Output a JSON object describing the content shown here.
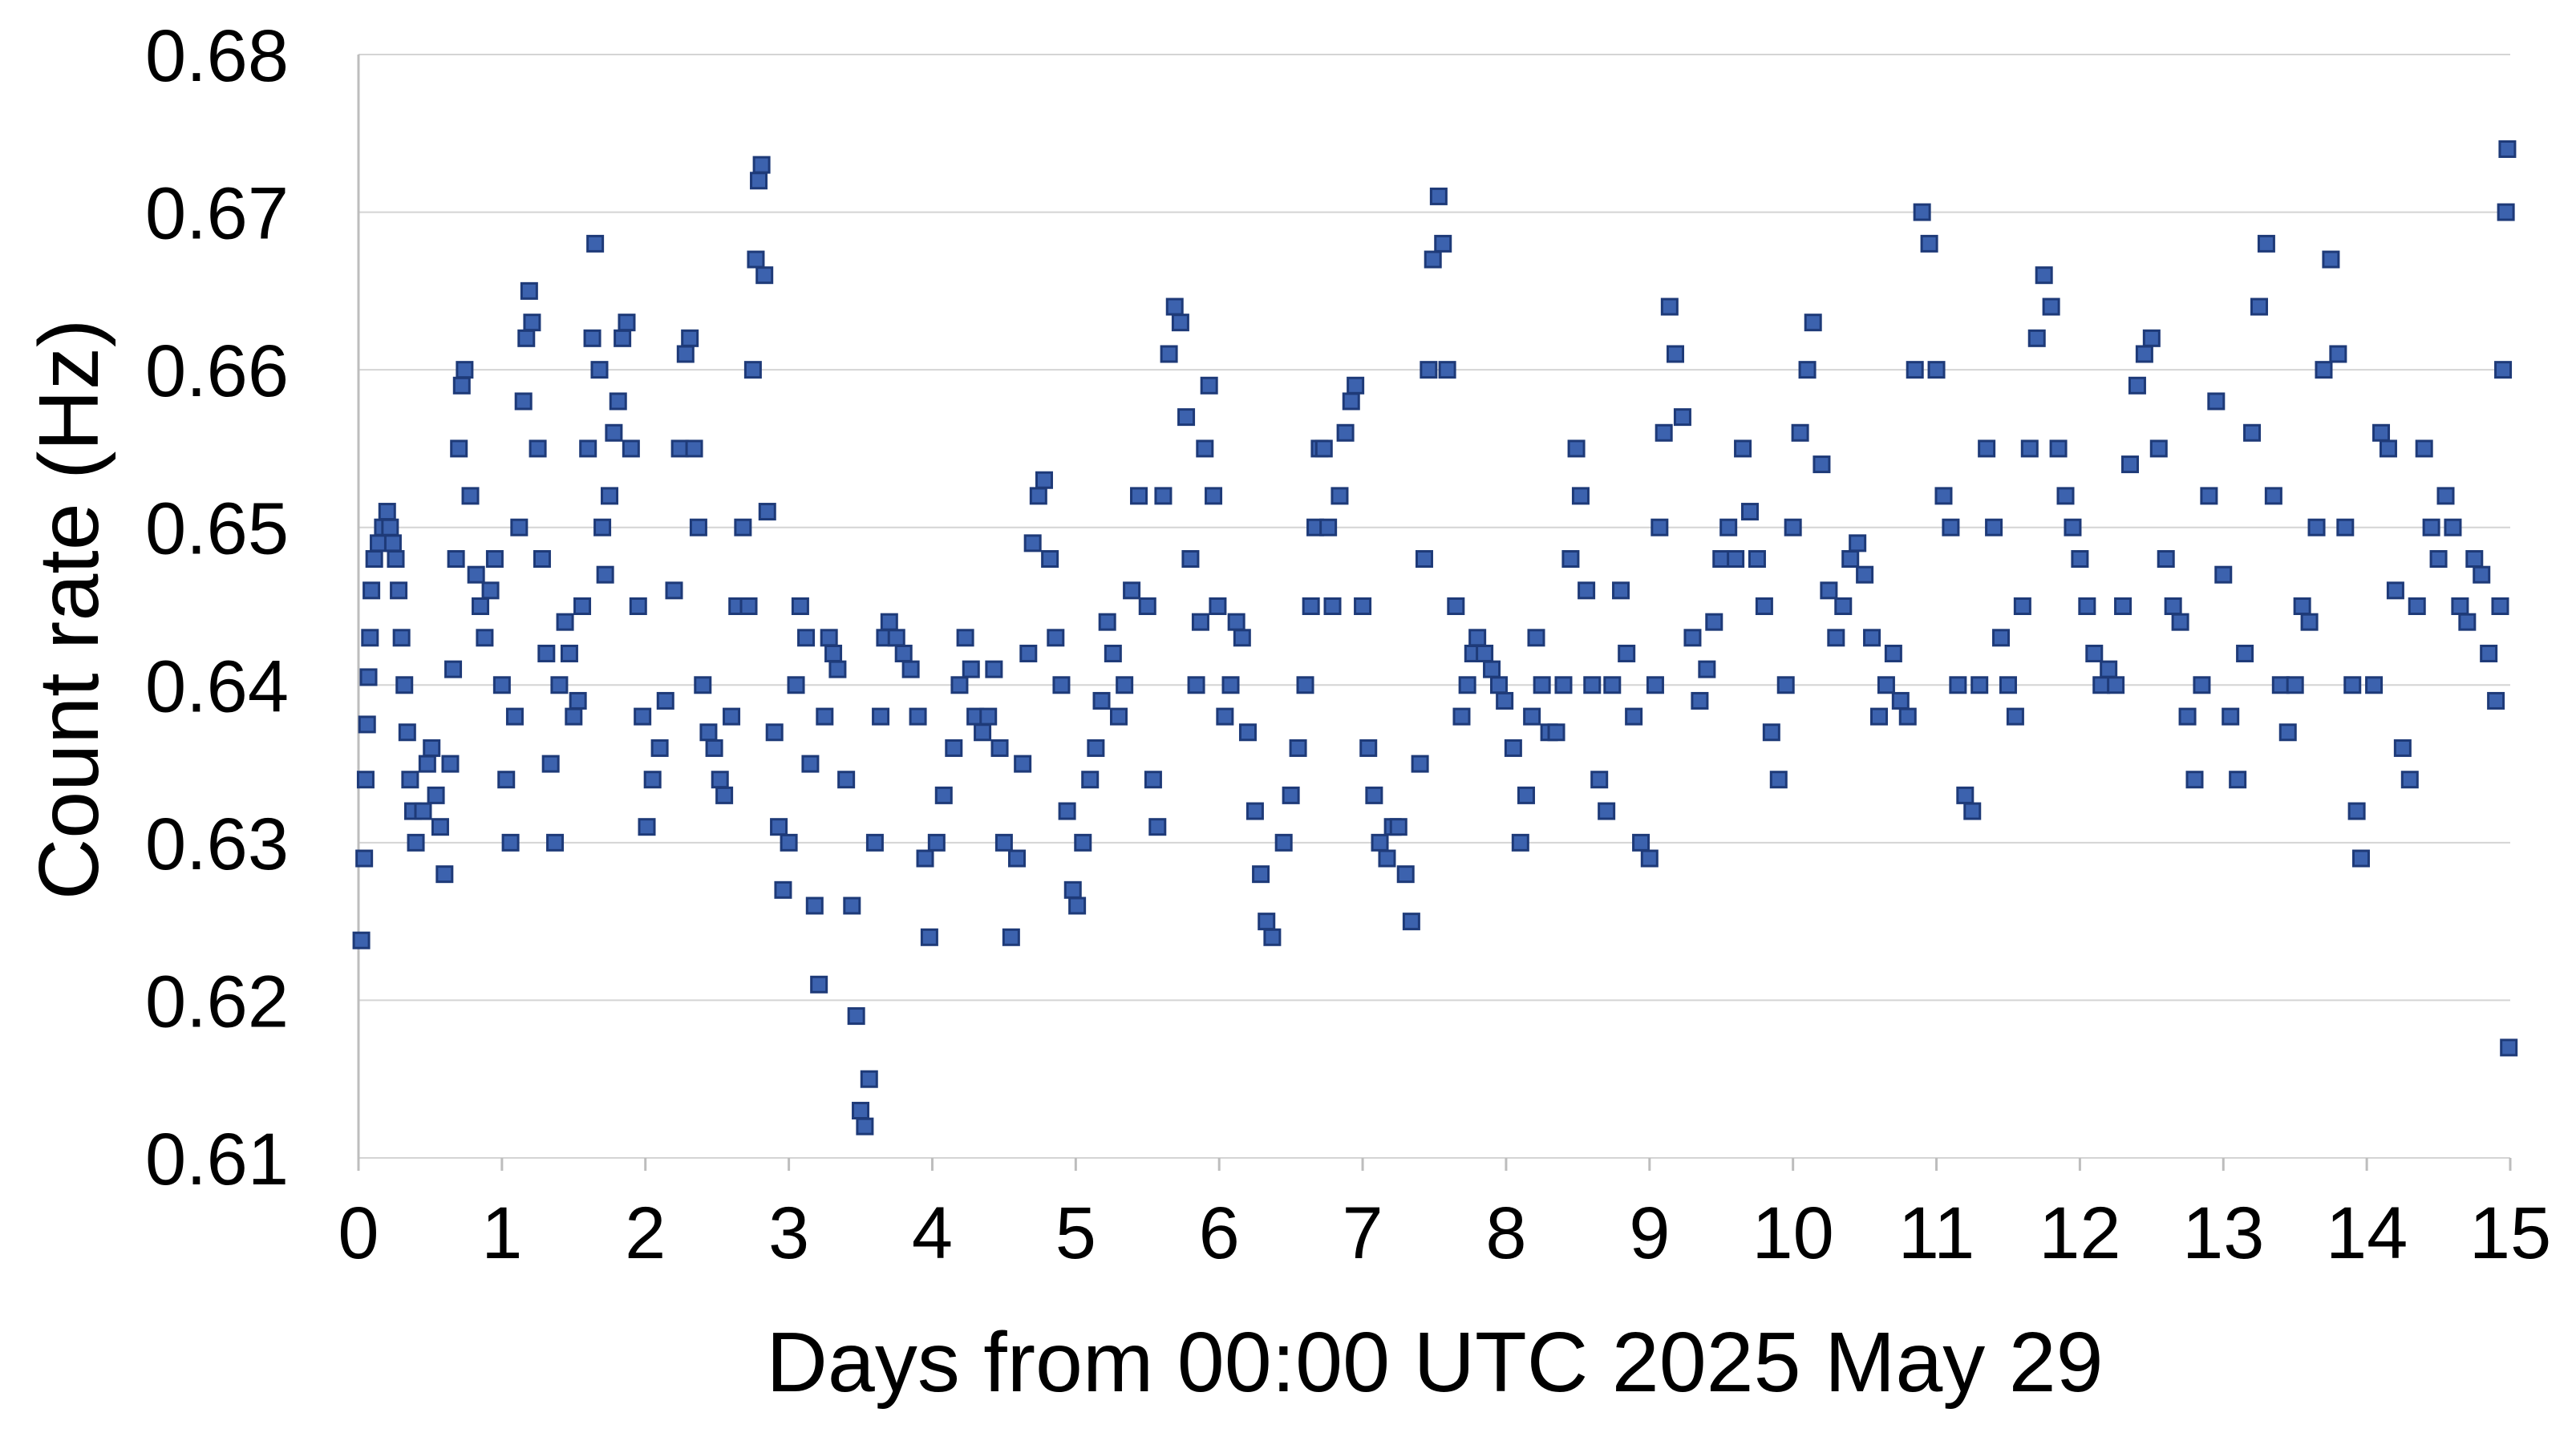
{
  "chart_data": {
    "type": "scatter",
    "xlabel": "Days from 00:00 UTC 2025 May 29",
    "ylabel": "Count rate (Hz)",
    "color": "#3c62ae",
    "grid": true,
    "xlim": [
      0,
      15
    ],
    "xticks": [
      0,
      1,
      2,
      3,
      4,
      5,
      6,
      7,
      8,
      9,
      10,
      11,
      12,
      13,
      14,
      15
    ],
    "ylim": [
      0.61,
      0.68
    ],
    "yticks": [
      0.61,
      0.62,
      0.63,
      0.64,
      0.65,
      0.66,
      0.67,
      0.68
    ],
    "x": [
      0.02,
      0.04,
      0.05,
      0.06,
      0.07,
      0.08,
      0.09,
      0.11,
      0.14,
      0.17,
      0.2,
      0.22,
      0.24,
      0.26,
      0.28,
      0.3,
      0.32,
      0.34,
      0.36,
      0.38,
      0.4,
      0.45,
      0.48,
      0.51,
      0.54,
      0.57,
      0.6,
      0.64,
      0.66,
      0.68,
      0.7,
      0.72,
      0.74,
      0.78,
      0.82,
      0.85,
      0.88,
      0.92,
      0.95,
      1.0,
      1.03,
      1.06,
      1.09,
      1.12,
      1.15,
      1.17,
      1.19,
      1.21,
      1.25,
      1.28,
      1.31,
      1.34,
      1.37,
      1.4,
      1.44,
      1.47,
      1.5,
      1.53,
      1.56,
      1.6,
      1.63,
      1.65,
      1.68,
      1.7,
      1.72,
      1.75,
      1.78,
      1.81,
      1.84,
      1.87,
      1.9,
      1.95,
      1.98,
      2.01,
      2.05,
      2.1,
      2.14,
      2.2,
      2.24,
      2.28,
      2.31,
      2.34,
      2.37,
      2.4,
      2.44,
      2.48,
      2.52,
      2.55,
      2.6,
      2.64,
      2.68,
      2.72,
      2.75,
      2.77,
      2.79,
      2.81,
      2.83,
      2.85,
      2.9,
      2.93,
      2.96,
      3.0,
      3.05,
      3.08,
      3.12,
      3.15,
      3.18,
      3.21,
      3.25,
      3.28,
      3.31,
      3.34,
      3.4,
      3.44,
      3.47,
      3.5,
      3.53,
      3.56,
      3.6,
      3.64,
      3.67,
      3.7,
      3.75,
      3.8,
      3.85,
      3.9,
      3.95,
      3.98,
      4.03,
      4.08,
      4.15,
      4.19,
      4.23,
      4.27,
      4.3,
      4.35,
      4.39,
      4.43,
      4.47,
      4.5,
      4.55,
      4.59,
      4.63,
      4.67,
      4.7,
      4.74,
      4.78,
      4.82,
      4.86,
      4.9,
      4.94,
      4.98,
      5.01,
      5.05,
      5.1,
      5.14,
      5.18,
      5.22,
      5.26,
      5.3,
      5.34,
      5.39,
      5.44,
      5.5,
      5.54,
      5.57,
      5.61,
      5.65,
      5.69,
      5.73,
      5.77,
      5.8,
      5.84,
      5.87,
      5.9,
      5.93,
      5.96,
      5.99,
      6.04,
      6.08,
      6.12,
      6.16,
      6.2,
      6.25,
      6.29,
      6.33,
      6.37,
      6.45,
      6.5,
      6.55,
      6.6,
      6.64,
      6.67,
      6.7,
      6.73,
      6.76,
      6.79,
      6.84,
      6.88,
      6.92,
      6.95,
      7.0,
      7.04,
      7.08,
      7.12,
      7.17,
      7.21,
      7.25,
      7.3,
      7.34,
      7.4,
      7.43,
      7.46,
      7.49,
      7.53,
      7.56,
      7.59,
      7.65,
      7.69,
      7.73,
      7.77,
      7.8,
      7.85,
      7.9,
      7.95,
      7.99,
      8.05,
      8.1,
      8.14,
      8.18,
      8.21,
      8.25,
      8.3,
      8.35,
      8.4,
      8.45,
      8.49,
      8.52,
      8.56,
      8.6,
      8.65,
      8.7,
      8.74,
      8.8,
      8.84,
      8.89,
      8.94,
      9.0,
      9.04,
      9.07,
      9.1,
      9.14,
      9.18,
      9.23,
      9.3,
      9.35,
      9.4,
      9.45,
      9.5,
      9.55,
      9.6,
      9.65,
      9.7,
      9.75,
      9.8,
      9.85,
      9.9,
      9.95,
      10.0,
      10.05,
      10.1,
      10.14,
      10.2,
      10.25,
      10.3,
      10.35,
      10.4,
      10.45,
      10.5,
      10.55,
      10.6,
      10.65,
      10.7,
      10.75,
      10.8,
      10.85,
      10.9,
      10.95,
      11.0,
      11.05,
      11.1,
      11.15,
      11.2,
      11.25,
      11.3,
      11.35,
      11.4,
      11.45,
      11.5,
      11.55,
      11.6,
      11.65,
      11.7,
      11.75,
      11.8,
      11.85,
      11.9,
      11.95,
      12.0,
      12.05,
      12.1,
      12.15,
      12.2,
      12.25,
      12.3,
      12.35,
      12.4,
      12.45,
      12.5,
      12.55,
      12.6,
      12.65,
      12.7,
      12.75,
      12.8,
      12.85,
      12.9,
      12.95,
      13.0,
      13.05,
      13.1,
      13.15,
      13.2,
      13.25,
      13.3,
      13.35,
      13.4,
      13.45,
      13.5,
      13.55,
      13.6,
      13.65,
      13.7,
      13.75,
      13.8,
      13.85,
      13.9,
      13.93,
      13.96,
      14.05,
      14.1,
      14.15,
      14.2,
      14.25,
      14.3,
      14.35,
      14.4,
      14.45,
      14.5,
      14.55,
      14.6,
      14.65,
      14.7,
      14.75,
      14.8,
      14.85,
      14.9,
      14.93,
      14.95,
      14.97,
      14.98,
      14.99
    ],
    "values": [
      0.6238,
      0.629,
      0.634,
      0.6375,
      0.6405,
      0.643,
      0.646,
      0.648,
      0.649,
      0.65,
      0.651,
      0.65,
      0.649,
      0.648,
      0.646,
      0.643,
      0.64,
      0.637,
      0.634,
      0.632,
      0.63,
      0.632,
      0.635,
      0.636,
      0.633,
      0.631,
      0.628,
      0.635,
      0.641,
      0.648,
      0.655,
      0.659,
      0.66,
      0.652,
      0.647,
      0.645,
      0.643,
      0.646,
      0.648,
      0.64,
      0.634,
      0.63,
      0.638,
      0.65,
      0.658,
      0.662,
      0.665,
      0.663,
      0.655,
      0.648,
      0.642,
      0.635,
      0.63,
      0.64,
      0.644,
      0.642,
      0.638,
      0.639,
      0.645,
      0.655,
      0.662,
      0.668,
      0.66,
      0.65,
      0.647,
      0.652,
      0.656,
      0.658,
      0.662,
      0.663,
      0.655,
      0.645,
      0.638,
      0.631,
      0.634,
      0.636,
      0.639,
      0.646,
      0.655,
      0.661,
      0.662,
      0.655,
      0.65,
      0.64,
      0.637,
      0.636,
      0.634,
      0.633,
      0.638,
      0.645,
      0.65,
      0.645,
      0.66,
      0.667,
      0.672,
      0.673,
      0.666,
      0.651,
      0.637,
      0.631,
      0.627,
      0.63,
      0.64,
      0.645,
      0.643,
      0.635,
      0.626,
      0.621,
      0.638,
      0.643,
      0.642,
      0.641,
      0.634,
      0.626,
      0.619,
      0.613,
      0.612,
      0.615,
      0.63,
      0.638,
      0.643,
      0.644,
      0.643,
      0.642,
      0.641,
      0.638,
      0.629,
      0.624,
      0.63,
      0.633,
      0.636,
      0.64,
      0.643,
      0.641,
      0.638,
      0.637,
      0.638,
      0.641,
      0.636,
      0.63,
      0.624,
      0.629,
      0.635,
      0.642,
      0.649,
      0.652,
      0.653,
      0.648,
      0.643,
      0.64,
      0.632,
      0.627,
      0.626,
      0.63,
      0.634,
      0.636,
      0.639,
      0.644,
      0.642,
      0.638,
      0.64,
      0.646,
      0.652,
      0.645,
      0.634,
      0.631,
      0.652,
      0.661,
      0.664,
      0.663,
      0.657,
      0.648,
      0.64,
      0.644,
      0.655,
      0.659,
      0.652,
      0.645,
      0.638,
      0.64,
      0.644,
      0.643,
      0.637,
      0.632,
      0.628,
      0.625,
      0.624,
      0.63,
      0.633,
      0.636,
      0.64,
      0.645,
      0.65,
      0.655,
      0.655,
      0.65,
      0.645,
      0.652,
      0.656,
      0.658,
      0.659,
      0.645,
      0.636,
      0.633,
      0.63,
      0.629,
      0.631,
      0.631,
      0.628,
      0.625,
      0.635,
      0.648,
      0.66,
      0.667,
      0.671,
      0.668,
      0.66,
      0.645,
      0.638,
      0.64,
      0.642,
      0.643,
      0.642,
      0.641,
      0.64,
      0.639,
      0.636,
      0.63,
      0.633,
      0.638,
      0.643,
      0.64,
      0.637,
      0.637,
      0.64,
      0.648,
      0.655,
      0.652,
      0.646,
      0.64,
      0.634,
      0.632,
      0.64,
      0.646,
      0.642,
      0.638,
      0.63,
      0.629,
      0.64,
      0.65,
      0.656,
      0.664,
      0.661,
      0.657,
      0.643,
      0.639,
      0.641,
      0.644,
      0.648,
      0.65,
      0.648,
      0.655,
      0.651,
      0.648,
      0.645,
      0.637,
      0.634,
      0.64,
      0.65,
      0.656,
      0.66,
      0.663,
      0.654,
      0.646,
      0.643,
      0.645,
      0.648,
      0.649,
      0.647,
      0.643,
      0.638,
      0.64,
      0.642,
      0.639,
      0.638,
      0.66,
      0.67,
      0.668,
      0.66,
      0.652,
      0.65,
      0.64,
      0.633,
      0.632,
      0.64,
      0.655,
      0.65,
      0.643,
      0.64,
      0.638,
      0.645,
      0.655,
      0.662,
      0.666,
      0.664,
      0.655,
      0.652,
      0.65,
      0.648,
      0.645,
      0.642,
      0.64,
      0.641,
      0.64,
      0.645,
      0.654,
      0.659,
      0.661,
      0.662,
      0.655,
      0.648,
      0.645,
      0.644,
      0.638,
      0.634,
      0.64,
      0.652,
      0.658,
      0.647,
      0.638,
      0.634,
      0.642,
      0.656,
      0.664,
      0.668,
      0.652,
      0.64,
      0.637,
      0.64,
      0.645,
      0.644,
      0.65,
      0.66,
      0.667,
      0.661,
      0.65,
      0.64,
      0.632,
      0.629,
      0.64,
      0.656,
      0.655,
      0.646,
      0.636,
      0.634,
      0.645,
      0.655,
      0.65,
      0.648,
      0.652,
      0.65,
      0.645,
      0.644,
      0.648,
      0.647,
      0.642,
      0.639,
      0.645,
      0.66,
      0.67,
      0.674,
      0.617
    ]
  }
}
